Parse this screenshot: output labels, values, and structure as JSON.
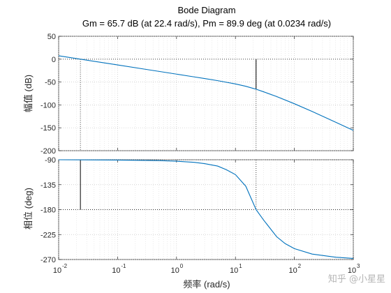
{
  "chart_data": {
    "type": "line",
    "title": "Bode Diagram",
    "subtitle": "Gm = 65.7 dB (at 22.4 rad/s),  Pm = 89.9 deg (at 0.0234 rad/s)",
    "xlabel": "频率  (rad/s)",
    "xscale": "log",
    "xlim": [
      0.01,
      1000
    ],
    "grid": true,
    "x_ticks": [
      {
        "base": "10",
        "exp": "-2",
        "value": 0.01
      },
      {
        "base": "10",
        "exp": "-1",
        "value": 0.1
      },
      {
        "base": "10",
        "exp": "0",
        "value": 1
      },
      {
        "base": "10",
        "exp": "1",
        "value": 10
      },
      {
        "base": "10",
        "exp": "2",
        "value": 100
      },
      {
        "base": "10",
        "exp": "3",
        "value": 1000
      }
    ],
    "color": "#0072bd",
    "markers": {
      "gain_margin": {
        "freq": 22.4,
        "from_db": 0,
        "to_db": -65.7
      },
      "phase_margin": {
        "freq": 0.0234,
        "from_deg": -90.1,
        "to_deg": -180
      }
    },
    "panels": [
      {
        "name": "magnitude",
        "ylabel": "幅值 (dB)",
        "ylim": [
          -200,
          50
        ],
        "yticks": [
          50,
          0,
          -50,
          -100,
          -150,
          -200
        ],
        "series": [
          {
            "x": [
              0.01,
              0.0234,
              0.1,
              0.3,
              1,
              2,
              3,
              5,
              10,
              15,
              22.4,
              30,
              50,
              100,
              200,
              500,
              1000
            ],
            "values": [
              7.4,
              0,
              -12.6,
              -22.2,
              -32.7,
              -38.8,
              -42.3,
              -47.0,
              -54.1,
              -59.3,
              -65.7,
              -71.3,
              -81.7,
              -97.4,
              -114.2,
              -137.6,
              -155.6
            ]
          }
        ]
      },
      {
        "name": "phase",
        "ylabel": "相位 (deg)",
        "ylim": [
          -270,
          -90
        ],
        "yticks": [
          -90,
          -135,
          -180,
          -225,
          -270
        ],
        "series": [
          {
            "x": [
              0.01,
              0.1,
              0.5,
              1,
              2,
              3,
              5,
              7,
              10,
              15,
              22.4,
              30,
              50,
              70,
              100,
              200,
              500,
              1000
            ],
            "values": [
              -90,
              -90.5,
              -91.5,
              -92.6,
              -94.7,
              -97,
              -101.4,
              -108,
              -116.8,
              -137.8,
              -180,
              -198.6,
              -228.8,
              -241.4,
              -250.3,
              -260.2,
              -265.8,
              -268
            ]
          }
        ]
      }
    ]
  },
  "watermark": "知乎 @小星星"
}
